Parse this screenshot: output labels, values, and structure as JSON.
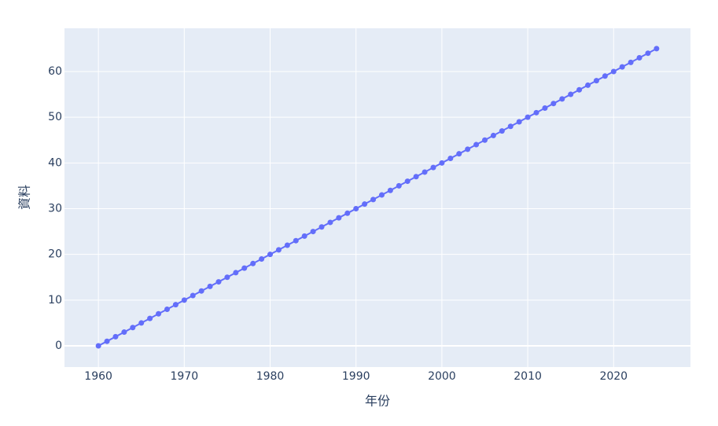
{
  "chart_data": {
    "type": "line",
    "xlabel": "年份",
    "ylabel": "資料",
    "x": [
      1960,
      1961,
      1962,
      1963,
      1964,
      1965,
      1966,
      1967,
      1968,
      1969,
      1970,
      1971,
      1972,
      1973,
      1974,
      1975,
      1976,
      1977,
      1978,
      1979,
      1980,
      1981,
      1982,
      1983,
      1984,
      1985,
      1986,
      1987,
      1988,
      1989,
      1990,
      1991,
      1992,
      1993,
      1994,
      1995,
      1996,
      1997,
      1998,
      1999,
      2000,
      2001,
      2002,
      2003,
      2004,
      2005,
      2006,
      2007,
      2008,
      2009,
      2010,
      2011,
      2012,
      2013,
      2014,
      2015,
      2016,
      2017,
      2018,
      2019,
      2020,
      2021,
      2022,
      2023,
      2024,
      2025
    ],
    "series": [
      {
        "color": "#636efa",
        "values": [
          0,
          1,
          2,
          3,
          4,
          5,
          6,
          7,
          8,
          9,
          10,
          11,
          12,
          13,
          14,
          15,
          16,
          17,
          18,
          19,
          20,
          21,
          22,
          23,
          24,
          25,
          26,
          27,
          28,
          29,
          30,
          31,
          32,
          33,
          34,
          35,
          36,
          37,
          38,
          39,
          40,
          41,
          42,
          43,
          44,
          45,
          46,
          47,
          48,
          49,
          50,
          51,
          52,
          53,
          54,
          55,
          56,
          57,
          58,
          59,
          60,
          61,
          62,
          63,
          64,
          65
        ]
      }
    ],
    "xlim": [
      1956.05,
      2028.95
    ],
    "ylim": [
      -4.64,
      69.45
    ],
    "xticks": [
      1960,
      1970,
      1980,
      1990,
      2000,
      2010,
      2020
    ],
    "yticks": [
      0,
      10,
      20,
      30,
      40,
      50,
      60
    ],
    "grid": true
  }
}
